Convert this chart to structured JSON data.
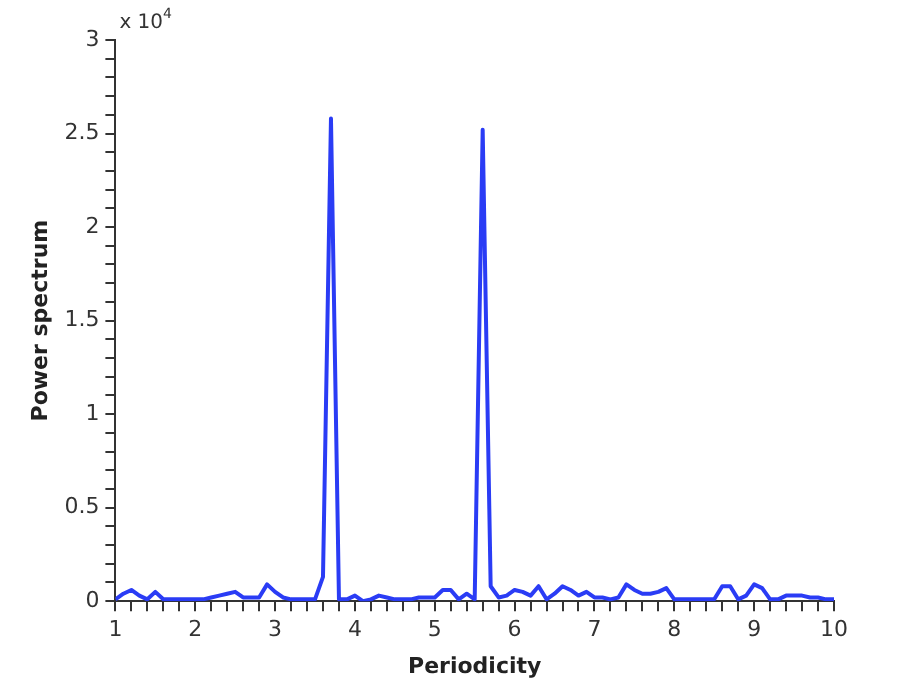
{
  "chart_data": {
    "type": "line",
    "xlabel": "Periodicity",
    "ylabel": "Power spectrum",
    "annotations": [
      "x 10$^{4}$"
    ],
    "x": [
      1.0,
      1.1,
      1.2,
      1.3,
      1.4,
      1.5,
      1.6,
      1.7,
      1.8,
      1.9,
      2.0,
      2.1,
      2.2,
      2.3,
      2.4,
      2.5,
      2.6,
      2.7,
      2.8,
      2.9,
      3.0,
      3.1,
      3.2,
      3.3,
      3.4,
      3.5,
      3.6,
      3.7,
      3.8,
      3.9,
      4.0,
      4.1,
      4.2,
      4.3,
      4.4,
      4.5,
      4.6,
      4.7,
      4.8,
      4.9,
      5.0,
      5.1,
      5.2,
      5.3,
      5.4,
      5.5,
      5.6,
      5.7,
      5.8,
      5.9,
      6.0,
      6.1,
      6.2,
      6.3,
      6.4,
      6.5,
      6.6,
      6.7,
      6.8,
      6.9,
      7.0,
      7.1,
      7.2,
      7.3,
      7.4,
      7.5,
      7.6,
      7.7,
      7.8,
      7.9,
      8.0,
      8.1,
      8.2,
      8.3,
      8.4,
      8.5,
      8.6,
      8.7,
      8.8,
      8.9,
      9.0,
      9.1,
      9.2,
      9.3,
      9.4,
      9.5,
      9.6,
      9.7,
      9.8,
      9.9,
      10.0
    ],
    "series": [
      {
        "color": "#2a3cf5",
        "values": [
          0.01,
          0.04,
          0.06,
          0.03,
          0.01,
          0.05,
          0.01,
          0.01,
          0.01,
          0.01,
          0.01,
          0.01,
          0.02,
          0.03,
          0.04,
          0.05,
          0.02,
          0.02,
          0.02,
          0.09,
          0.05,
          0.02,
          0.01,
          0.01,
          0.01,
          0.01,
          0.13,
          2.58,
          0.01,
          0.01,
          0.03,
          0.0,
          0.01,
          0.03,
          0.02,
          0.01,
          0.01,
          0.01,
          0.02,
          0.02,
          0.02,
          0.06,
          0.06,
          0.01,
          0.04,
          0.01,
          2.52,
          0.08,
          0.02,
          0.03,
          0.06,
          0.05,
          0.03,
          0.08,
          0.01,
          0.04,
          0.08,
          0.06,
          0.03,
          0.05,
          0.02,
          0.02,
          0.01,
          0.02,
          0.09,
          0.06,
          0.04,
          0.04,
          0.05,
          0.07,
          0.01,
          0.01,
          0.01,
          0.01,
          0.01,
          0.01,
          0.08,
          0.08,
          0.01,
          0.03,
          0.09,
          0.07,
          0.01,
          0.01,
          0.03,
          0.03,
          0.03,
          0.02,
          0.02,
          0.01,
          0.01
        ]
      }
    ],
    "xlim": [
      1,
      10
    ],
    "ylim": [
      0,
      3
    ],
    "xticks": [
      1,
      {
        "value": 1.2,
        "label": null
      },
      {
        "value": 1.4,
        "label": null
      },
      {
        "value": 1.6,
        "label": null
      },
      {
        "value": 1.8,
        "label": null
      },
      2,
      {
        "value": 2.2,
        "label": null
      },
      {
        "value": 2.4,
        "label": null
      },
      {
        "value": 2.6,
        "label": null
      },
      {
        "value": 2.8,
        "label": null
      },
      3,
      {
        "value": 3.2,
        "label": null
      },
      {
        "value": 3.4,
        "label": null
      },
      {
        "value": 3.6,
        "label": null
      },
      {
        "value": 3.8,
        "label": null
      },
      4,
      {
        "value": 4.2,
        "label": null
      },
      {
        "value": 4.4,
        "label": null
      },
      {
        "value": 4.6,
        "label": null
      },
      {
        "value": 4.8,
        "label": null
      },
      5,
      {
        "value": 5.2,
        "label": null
      },
      {
        "value": 5.4,
        "label": null
      },
      {
        "value": 5.6,
        "label": null
      },
      {
        "value": 5.8,
        "label": null
      },
      6,
      {
        "value": 6.2,
        "label": null
      },
      {
        "value": 6.4,
        "label": null
      },
      {
        "value": 6.6,
        "label": null
      },
      {
        "value": 6.8,
        "label": null
      },
      7,
      {
        "value": 7.2,
        "label": null
      },
      {
        "value": 7.4,
        "label": null
      },
      {
        "value": 7.6,
        "label": null
      },
      {
        "value": 7.8,
        "label": null
      },
      8,
      {
        "value": 8.2,
        "label": null
      },
      {
        "value": 8.4,
        "label": null
      },
      {
        "value": 8.6,
        "label": null
      },
      {
        "value": 8.8,
        "label": null
      },
      9,
      {
        "value": 9.2,
        "label": null
      },
      {
        "value": 9.4,
        "label": null
      },
      {
        "value": 9.6,
        "label": null
      },
      {
        "value": 9.8,
        "label": null
      },
      10
    ],
    "yticks": [
      0,
      {
        "value": 0.1,
        "label": null
      },
      {
        "value": 0.2,
        "label": null
      },
      {
        "value": 0.3,
        "label": null
      },
      {
        "value": 0.4,
        "label": null
      },
      0.5,
      {
        "value": 0.6,
        "label": null
      },
      {
        "value": 0.7,
        "label": null
      },
      {
        "value": 0.8,
        "label": null
      },
      {
        "value": 0.9,
        "label": null
      },
      1,
      {
        "value": 1.1,
        "label": null
      },
      {
        "value": 1.2,
        "label": null
      },
      {
        "value": 1.3,
        "label": null
      },
      {
        "value": 1.4,
        "label": null
      },
      1.5,
      {
        "value": 1.6,
        "label": null
      },
      {
        "value": 1.7,
        "label": null
      },
      {
        "value": 1.8,
        "label": null
      },
      {
        "value": 1.9,
        "label": null
      },
      2,
      {
        "value": 2.1,
        "label": null
      },
      {
        "value": 2.2,
        "label": null
      },
      {
        "value": 2.3,
        "label": null
      },
      {
        "value": 2.4,
        "label": null
      },
      2.5,
      {
        "value": 2.6,
        "label": null
      },
      {
        "value": 2.7,
        "label": null
      },
      {
        "value": 2.8,
        "label": null
      },
      {
        "value": 2.9,
        "label": null
      },
      3
    ],
    "grid": false,
    "legend": false,
    "marker": "none",
    "line_style": "solid"
  }
}
